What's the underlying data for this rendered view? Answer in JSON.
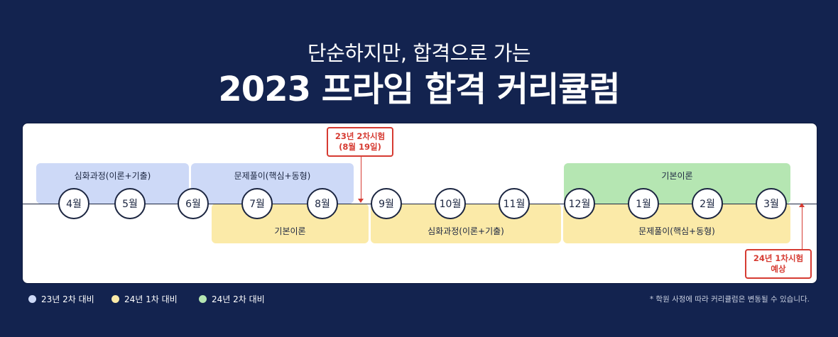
{
  "header": {
    "subtitle": "단순하지만, 합격으로 가는",
    "title": "2023 프라임 합격 커리큘럼"
  },
  "top_bands": [
    {
      "label": "심화과정(이론+기출)",
      "color": "#cdd9f7"
    },
    {
      "label": "문제풀이(핵심+동형)",
      "color": "#cdd9f7"
    },
    {
      "label": "기본이론",
      "color": "#b5e6b2"
    }
  ],
  "bottom_bands": [
    {
      "label": "기본이론",
      "color": "#fbeaa8"
    },
    {
      "label": "심화과정(이론+기출)",
      "color": "#fbeaa8"
    },
    {
      "label": "문제풀이(핵심+동형)",
      "color": "#fbeaa8"
    }
  ],
  "months": [
    "4월",
    "5월",
    "6월",
    "7월",
    "8월",
    "9월",
    "10월",
    "11월",
    "12월",
    "1월",
    "2월",
    "3월"
  ],
  "exams": [
    {
      "label": "23년 2차시험\n(8월 19일)"
    },
    {
      "label": "24년 1차시험\n예상"
    }
  ],
  "legend": [
    {
      "label": "23년 2차 대비",
      "color": "#cdd9f7"
    },
    {
      "label": "24년 1차 대비",
      "color": "#fbeaa8"
    },
    {
      "label": "24년 2차 대비",
      "color": "#b5e6b2"
    }
  ],
  "note": "* 학원 사정에 따라 커리큘럼은 변동될 수 있습니다."
}
